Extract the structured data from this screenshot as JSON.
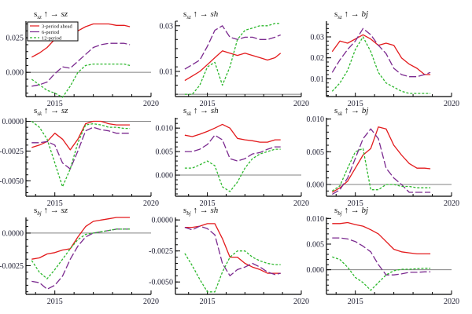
{
  "figure": {
    "background": "#ffffff"
  },
  "legend": {
    "placement": "top-left of first panel",
    "entries": [
      {
        "name": "3-period ahead",
        "color": "#e31a1c",
        "dash": "solid"
      },
      {
        "name": "6-period",
        "color": "#7b2a8f",
        "dash": "longdash"
      },
      {
        "name": "12-period",
        "color": "#2db82d",
        "dash": "dashed"
      }
    ]
  },
  "chart_data": [
    {
      "type": "line",
      "title": {
        "base": "s",
        "sub": "sz",
        "arrow": "↑ →",
        "target": "sz"
      },
      "xlim": [
        2013.5,
        2020
      ],
      "xticks": [
        2015,
        2020
      ],
      "ylim": [
        -0.0175,
        0.037
      ],
      "yticks": [
        {
          "v": 0.025,
          "label": "0.025"
        },
        {
          "v": 0.0,
          "label": "0.000"
        }
      ],
      "zero_line": true,
      "x": [
        2013.8,
        2014.2,
        2014.6,
        2015.0,
        2015.4,
        2015.8,
        2016.2,
        2016.6,
        2017.0,
        2017.4,
        2017.8,
        2018.2,
        2018.6,
        2018.9
      ],
      "series": [
        {
          "name": "3-period ahead",
          "values": [
            0.011,
            0.014,
            0.018,
            0.024,
            0.028,
            0.028,
            0.03,
            0.033,
            0.035,
            0.035,
            0.035,
            0.034,
            0.034,
            0.033
          ]
        },
        {
          "name": "6-period",
          "values": [
            -0.01,
            -0.009,
            -0.007,
            -0.001,
            0.004,
            0.003,
            0.008,
            0.013,
            0.018,
            0.02,
            0.021,
            0.021,
            0.021,
            0.02
          ]
        },
        {
          "name": "12-period",
          "values": [
            -0.005,
            -0.009,
            -0.013,
            -0.015,
            -0.018,
            -0.01,
            0.0,
            0.005,
            0.006,
            0.006,
            0.006,
            0.006,
            0.006,
            0.005
          ]
        }
      ]
    },
    {
      "type": "line",
      "title": {
        "base": "s",
        "sub": "sz",
        "arrow": "↑ →",
        "target": "sh"
      },
      "xlim": [
        2013.3,
        2020
      ],
      "xticks": [
        2015,
        2020
      ],
      "ylim": [
        -0.001,
        0.032
      ],
      "yticks": [
        {
          "v": 0.03,
          "label": "0.03"
        },
        {
          "v": 0.01,
          "label": "0.01"
        }
      ],
      "zero_line": true,
      "x": [
        2013.8,
        2014.2,
        2014.6,
        2015.0,
        2015.4,
        2015.8,
        2016.2,
        2016.6,
        2017.0,
        2017.4,
        2017.8,
        2018.2,
        2018.6,
        2018.9
      ],
      "series": [
        {
          "name": "3-period ahead",
          "values": [
            0.006,
            0.008,
            0.01,
            0.013,
            0.016,
            0.019,
            0.018,
            0.017,
            0.018,
            0.017,
            0.016,
            0.015,
            0.016,
            0.018
          ]
        },
        {
          "name": "6-period",
          "values": [
            0.011,
            0.013,
            0.015,
            0.021,
            0.028,
            0.03,
            0.025,
            0.024,
            0.025,
            0.025,
            0.024,
            0.024,
            0.025,
            0.026
          ]
        },
        {
          "name": "12-period",
          "values": [
            0.0,
            0.0,
            0.004,
            0.012,
            0.014,
            0.004,
            0.012,
            0.024,
            0.028,
            0.029,
            0.03,
            0.03,
            0.031,
            0.031
          ]
        }
      ]
    },
    {
      "type": "line",
      "title": {
        "base": "s",
        "sub": "sz",
        "arrow": "↑ →",
        "target": "bj"
      },
      "xlim": [
        2013.5,
        2020
      ],
      "xticks": [
        2015,
        2020
      ],
      "ylim": [
        0.0015,
        0.0375
      ],
      "yticks": [
        {
          "v": 0.03,
          "label": "0.03"
        },
        {
          "v": 0.02,
          "label": "0.02"
        },
        {
          "v": 0.01,
          "label": "0.01"
        }
      ],
      "zero_line": false,
      "x": [
        2013.8,
        2014.2,
        2014.6,
        2015.0,
        2015.4,
        2015.8,
        2016.2,
        2016.6,
        2017.0,
        2017.4,
        2017.8,
        2018.2,
        2018.6,
        2018.9
      ],
      "series": [
        {
          "name": "3-period ahead",
          "values": [
            0.023,
            0.028,
            0.027,
            0.029,
            0.031,
            0.029,
            0.026,
            0.027,
            0.026,
            0.02,
            0.017,
            0.015,
            0.012,
            0.012
          ]
        },
        {
          "name": "6-period",
          "values": [
            0.013,
            0.019,
            0.024,
            0.028,
            0.034,
            0.031,
            0.026,
            0.022,
            0.015,
            0.012,
            0.011,
            0.011,
            0.012,
            0.013
          ]
        },
        {
          "name": "12-period",
          "values": [
            0.004,
            0.008,
            0.014,
            0.024,
            0.03,
            0.023,
            0.013,
            0.008,
            0.006,
            0.004,
            0.003,
            0.003,
            0.003,
            0.003
          ]
        }
      ]
    },
    {
      "type": "line",
      "title": {
        "base": "s",
        "sub": "sk",
        "arrow": "↑ →",
        "target": "sz"
      },
      "xlim": [
        2013.5,
        2020
      ],
      "xticks": [
        2015,
        2020
      ],
      "ylim": [
        -0.0063,
        0.0003
      ],
      "yticks": [
        {
          "v": 0.0,
          "label": "0.0000"
        },
        {
          "v": -0.0025,
          "label": "-0.0025"
        },
        {
          "v": -0.005,
          "label": "-0.0050"
        }
      ],
      "zero_line": true,
      "x": [
        2013.8,
        2014.2,
        2014.6,
        2015.0,
        2015.4,
        2015.8,
        2016.2,
        2016.6,
        2017.0,
        2017.4,
        2017.8,
        2018.2,
        2018.6,
        2018.9
      ],
      "series": [
        {
          "name": "3-period ahead",
          "values": [
            -0.0022,
            -0.002,
            -0.0017,
            -0.001,
            -0.0015,
            -0.0024,
            -0.0015,
            -0.0002,
            0.0,
            0.0,
            -0.0002,
            -0.0003,
            -0.0003,
            -0.0003
          ]
        },
        {
          "name": "6-period",
          "values": [
            -0.0018,
            -0.0018,
            -0.0017,
            -0.002,
            -0.0035,
            -0.004,
            -0.0025,
            -0.0008,
            -0.0005,
            -0.0007,
            -0.0008,
            -0.001,
            -0.001,
            -0.001
          ]
        },
        {
          "name": "12-period",
          "values": [
            0.0,
            -0.0005,
            -0.0015,
            -0.0035,
            -0.0055,
            -0.004,
            -0.0018,
            -0.0003,
            -0.0002,
            -0.0003,
            -0.0005,
            -0.0005,
            -0.0006,
            -0.0006
          ]
        }
      ]
    },
    {
      "type": "line",
      "title": {
        "base": "s",
        "sub": "sk",
        "arrow": "↑ →",
        "target": "sh"
      },
      "xlim": [
        2013.3,
        2020
      ],
      "xticks": [
        2015,
        2020
      ],
      "ylim": [
        -0.0045,
        0.0122
      ],
      "yticks": [
        {
          "v": 0.01,
          "label": "0.010"
        },
        {
          "v": 0.005,
          "label": "0.005"
        },
        {
          "v": 0.0,
          "label": "0.000"
        }
      ],
      "zero_line": true,
      "x": [
        2013.8,
        2014.2,
        2014.6,
        2015.0,
        2015.4,
        2015.8,
        2016.2,
        2016.6,
        2017.0,
        2017.4,
        2017.8,
        2018.2,
        2018.6,
        2018.9
      ],
      "series": [
        {
          "name": "3-period ahead",
          "values": [
            0.0085,
            0.0082,
            0.0087,
            0.0093,
            0.01,
            0.0108,
            0.01,
            0.0078,
            0.0075,
            0.0073,
            0.007,
            0.007,
            0.0075,
            0.0075
          ]
        },
        {
          "name": "6-period",
          "values": [
            0.005,
            0.005,
            0.0055,
            0.0065,
            0.0085,
            0.0075,
            0.0035,
            0.003,
            0.0035,
            0.0045,
            0.0048,
            0.0055,
            0.006,
            0.006
          ]
        },
        {
          "name": "12-period",
          "values": [
            0.0015,
            0.0015,
            0.0022,
            0.003,
            0.002,
            -0.0025,
            -0.0035,
            -0.0015,
            0.0015,
            0.0035,
            0.0045,
            0.005,
            0.0055,
            0.0055
          ]
        }
      ]
    },
    {
      "type": "line",
      "title": {
        "base": "s",
        "sub": "sk",
        "arrow": "↑ →",
        "target": "bj"
      },
      "xlim": [
        2013.5,
        2020
      ],
      "xticks": [
        2015,
        2020
      ],
      "ylim": [
        -0.0018,
        0.0102
      ],
      "yticks": [
        {
          "v": 0.01,
          "label": "0.010"
        },
        {
          "v": 0.005,
          "label": "0.005"
        },
        {
          "v": 0.0,
          "label": "0.000"
        }
      ],
      "zero_line": true,
      "x": [
        2013.8,
        2014.2,
        2014.6,
        2015.0,
        2015.4,
        2015.8,
        2016.2,
        2016.6,
        2017.0,
        2017.4,
        2017.8,
        2018.2,
        2018.6,
        2018.9
      ],
      "series": [
        {
          "name": "3-period ahead",
          "values": [
            -0.0012,
            -0.0005,
            0.0005,
            0.0025,
            0.0045,
            0.0055,
            0.0088,
            0.0085,
            0.006,
            0.0045,
            0.0032,
            0.0025,
            0.0025,
            0.0024
          ]
        },
        {
          "name": "6-period",
          "values": [
            -0.0015,
            -0.0008,
            0.001,
            0.004,
            0.007,
            0.0085,
            0.007,
            0.0025,
            0.001,
            0.0,
            -0.0012,
            -0.0012,
            -0.0012,
            -0.0012
          ]
        },
        {
          "name": "12-period",
          "values": [
            -0.001,
            -0.0002,
            0.0025,
            0.005,
            0.0055,
            -0.0008,
            -0.0008,
            0.0,
            0.0,
            -0.0003,
            -0.0003,
            -0.0005,
            -0.0005,
            -0.0005
          ]
        }
      ]
    },
    {
      "type": "line",
      "title": {
        "base": "s",
        "sub": "bj",
        "arrow": "↑ →",
        "target": "sz"
      },
      "xlim": [
        2013.5,
        2020
      ],
      "xticks": [
        2015,
        2020
      ],
      "ylim": [
        -0.0047,
        0.0012
      ],
      "yticks": [
        {
          "v": 0.0,
          "label": "0.0000"
        },
        {
          "v": -0.0025,
          "label": "-0.0025"
        }
      ],
      "zero_line": true,
      "x": [
        2013.8,
        2014.2,
        2014.6,
        2015.0,
        2015.4,
        2015.8,
        2016.2,
        2016.6,
        2017.0,
        2017.4,
        2017.8,
        2018.2,
        2018.6,
        2018.9
      ],
      "series": [
        {
          "name": "3-period ahead",
          "values": [
            -0.002,
            -0.0019,
            -0.0016,
            -0.0015,
            -0.0013,
            -0.0012,
            -0.0003,
            0.0005,
            0.0009,
            0.001,
            0.0011,
            0.0012,
            0.0012,
            0.0012
          ]
        },
        {
          "name": "6-period",
          "values": [
            -0.0037,
            -0.0038,
            -0.0043,
            -0.004,
            -0.0033,
            -0.002,
            -0.001,
            -0.0003,
            0.0,
            0.0001,
            0.0002,
            0.0003,
            0.0003,
            0.0003
          ]
        },
        {
          "name": "12-period",
          "values": [
            -0.0021,
            -0.003,
            -0.0035,
            -0.0028,
            -0.002,
            -0.0012,
            -0.0005,
            -0.0001,
            0.0,
            0.0001,
            0.0002,
            0.0003,
            0.0003,
            0.0003
          ]
        }
      ]
    },
    {
      "type": "line",
      "title": {
        "base": "s",
        "sub": "bj",
        "arrow": "↑ →",
        "target": "sh"
      },
      "xlim": [
        2013.3,
        2020
      ],
      "xticks": [
        2015,
        2020
      ],
      "ylim": [
        -0.006,
        0.0002
      ],
      "yticks": [
        {
          "v": 0.0,
          "label": "0.0000"
        },
        {
          "v": -0.0025,
          "label": "-0.0025"
        },
        {
          "v": -0.005,
          "label": "-0.0050"
        }
      ],
      "zero_line": false,
      "x": [
        2013.8,
        2014.2,
        2014.6,
        2015.0,
        2015.4,
        2015.8,
        2016.2,
        2016.6,
        2017.0,
        2017.4,
        2017.8,
        2018.2,
        2018.6,
        2018.9
      ],
      "series": [
        {
          "name": "3-period ahead",
          "values": [
            -0.0006,
            -0.0006,
            -0.0005,
            -0.0003,
            -0.0003,
            -0.0015,
            -0.003,
            -0.003,
            -0.0035,
            -0.0038,
            -0.004,
            -0.0043,
            -0.0043,
            -0.0043
          ]
        },
        {
          "name": "6-period",
          "values": [
            -0.0006,
            -0.0008,
            -0.0005,
            -0.0007,
            -0.0012,
            -0.0035,
            -0.0045,
            -0.004,
            -0.0038,
            -0.0035,
            -0.0038,
            -0.0042,
            -0.0044,
            -0.0043
          ]
        },
        {
          "name": "12-period",
          "values": [
            -0.0027,
            -0.0037,
            -0.0048,
            -0.0058,
            -0.0058,
            -0.0042,
            -0.003,
            -0.0025,
            -0.0025,
            -0.003,
            -0.0033,
            -0.0035,
            -0.0036,
            -0.0036
          ]
        }
      ]
    },
    {
      "type": "line",
      "title": {
        "base": "s",
        "sub": "bj",
        "arrow": "↑ →",
        "target": "bj"
      },
      "xlim": [
        2013.5,
        2020
      ],
      "xticks": [
        2015,
        2020
      ],
      "ylim": [
        -0.0048,
        0.0102
      ],
      "yticks": [
        {
          "v": 0.01,
          "label": "0.010"
        },
        {
          "v": 0.005,
          "label": "0.005"
        },
        {
          "v": 0.0,
          "label": "0.000"
        }
      ],
      "zero_line": true,
      "x": [
        2013.8,
        2014.2,
        2014.6,
        2015.0,
        2015.4,
        2015.8,
        2016.2,
        2016.6,
        2017.0,
        2017.4,
        2017.8,
        2018.2,
        2018.6,
        2018.9
      ],
      "series": [
        {
          "name": "3-period ahead",
          "values": [
            0.009,
            0.009,
            0.0092,
            0.0088,
            0.0085,
            0.0078,
            0.007,
            0.0055,
            0.004,
            0.0035,
            0.0033,
            0.0031,
            0.0031,
            0.0031
          ]
        },
        {
          "name": "6-period",
          "values": [
            0.0062,
            0.0062,
            0.006,
            0.0055,
            0.0046,
            0.0035,
            0.001,
            -0.001,
            -0.001,
            -0.0008,
            -0.0005,
            -0.0005,
            -0.0004,
            -0.0004
          ]
        },
        {
          "name": "12-period",
          "values": [
            0.0025,
            0.002,
            0.0005,
            -0.0015,
            -0.0025,
            -0.004,
            -0.0025,
            -0.001,
            -0.0002,
            0.0001,
            0.0001,
            0.0002,
            0.0003,
            0.0003
          ]
        }
      ]
    }
  ]
}
